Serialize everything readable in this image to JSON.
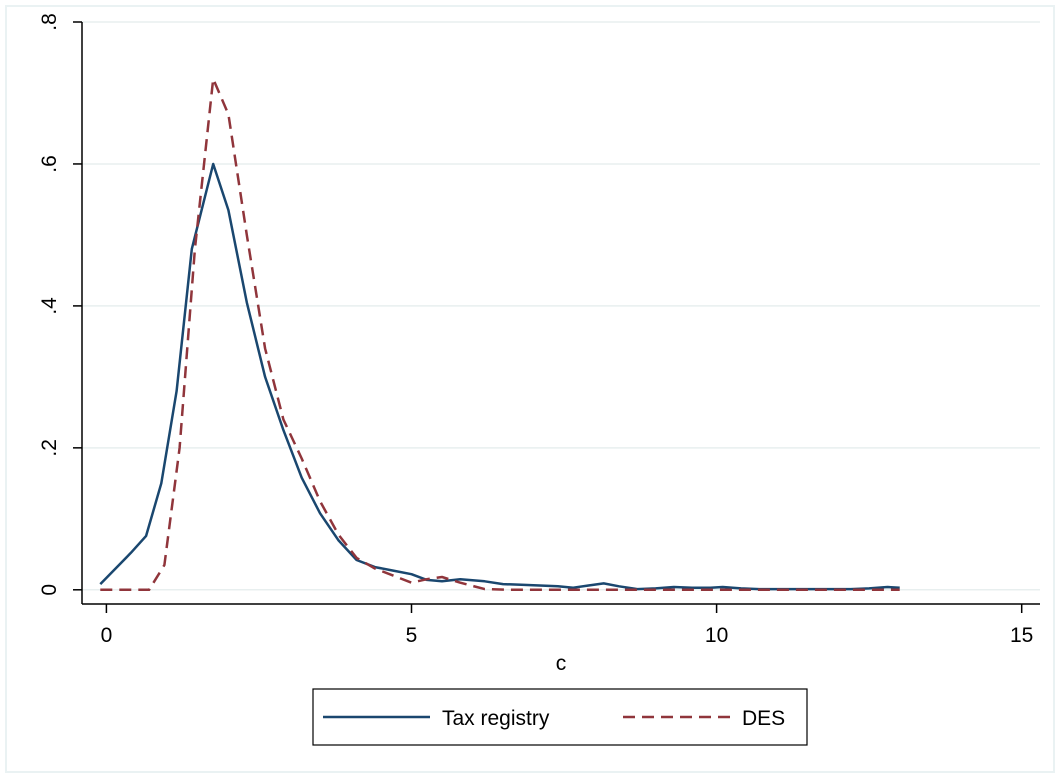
{
  "chart_data": {
    "type": "line",
    "xlabel": "c",
    "ylabel": "",
    "xlim": [
      -0.4,
      15.3
    ],
    "ylim": [
      -0.02,
      0.8
    ],
    "x_ticks": [
      0,
      5,
      10,
      15
    ],
    "x_tick_labels": [
      "0",
      "5",
      "10",
      "15"
    ],
    "y_ticks": [
      0,
      0.2,
      0.4,
      0.6,
      0.8
    ],
    "y_tick_labels": [
      "0",
      ".2",
      ".4",
      ".6",
      ".8"
    ],
    "grid": "horizontal",
    "legend_position": "bottom",
    "series": [
      {
        "name": "Tax registry",
        "color": "#1a476f",
        "style": "solid",
        "x": [
          -0.1,
          0.15,
          0.4,
          0.65,
          0.9,
          1.15,
          1.4,
          1.75,
          2.0,
          2.3,
          2.6,
          2.9,
          3.2,
          3.5,
          3.8,
          4.1,
          4.4,
          4.7,
          5.0,
          5.25,
          5.5,
          5.8,
          6.2,
          6.5,
          6.8,
          7.1,
          7.4,
          7.65,
          7.9,
          8.15,
          8.4,
          8.7,
          9.0,
          9.3,
          9.6,
          9.9,
          10.1,
          10.4,
          10.7,
          11.0,
          11.3,
          11.6,
          11.9,
          12.2,
          12.5,
          12.8,
          13.0
        ],
        "y": [
          0.008,
          0.03,
          0.052,
          0.076,
          0.15,
          0.28,
          0.48,
          0.6,
          0.535,
          0.405,
          0.3,
          0.225,
          0.158,
          0.108,
          0.07,
          0.042,
          0.032,
          0.027,
          0.022,
          0.014,
          0.012,
          0.015,
          0.012,
          0.008,
          0.007,
          0.006,
          0.005,
          0.003,
          0.006,
          0.009,
          0.005,
          0.001,
          0.002,
          0.004,
          0.003,
          0.003,
          0.004,
          0.002,
          0.001,
          0.001,
          0.001,
          0.001,
          0.001,
          0.001,
          0.002,
          0.004,
          0.003
        ]
      },
      {
        "name": "DES",
        "color": "#90353b",
        "style": "dashed",
        "x": [
          -0.1,
          0.2,
          0.45,
          0.7,
          0.95,
          1.2,
          1.45,
          1.75,
          2.0,
          2.3,
          2.6,
          2.9,
          3.2,
          3.5,
          3.8,
          4.1,
          4.4,
          4.7,
          5.0,
          5.25,
          5.5,
          5.8,
          6.2,
          6.6,
          7.0,
          7.5,
          8.0,
          8.5,
          9.0,
          9.5,
          10.0,
          10.5,
          11.0,
          11.5,
          12.0,
          12.5,
          13.0
        ],
        "y": [
          0,
          0,
          0,
          0,
          0.035,
          0.2,
          0.48,
          0.72,
          0.67,
          0.5,
          0.34,
          0.24,
          0.185,
          0.125,
          0.078,
          0.045,
          0.03,
          0.02,
          0.01,
          0.015,
          0.018,
          0.01,
          0.001,
          0,
          0,
          0,
          0,
          0,
          0,
          0,
          0,
          0,
          0,
          0,
          0,
          0,
          0
        ]
      }
    ]
  }
}
